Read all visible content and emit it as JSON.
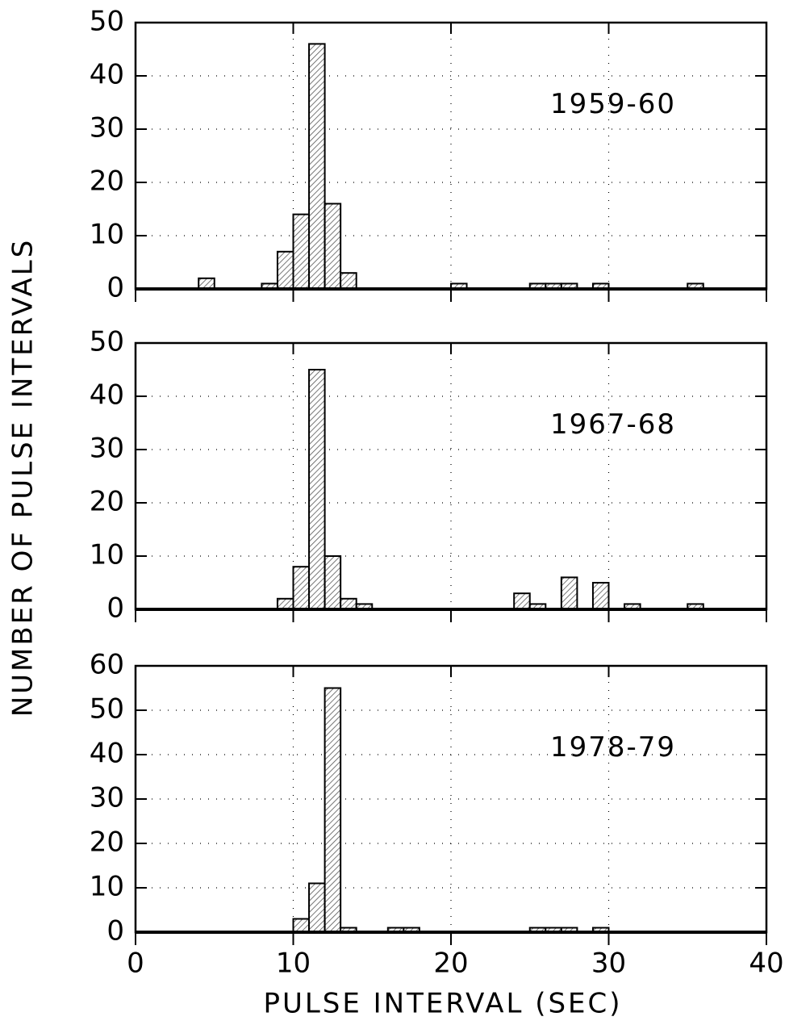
{
  "chart_data": [
    {
      "type": "histogram",
      "annotation": "1959-60",
      "bins": [
        0,
        1,
        2,
        3,
        4,
        5,
        6,
        7,
        8,
        9,
        10,
        11,
        12,
        13,
        14,
        15,
        16,
        17,
        18,
        19,
        20,
        21,
        22,
        23,
        24,
        25,
        26,
        27,
        28,
        29,
        30,
        31,
        32,
        33,
        34,
        35,
        36,
        37,
        38,
        39,
        40
      ],
      "counts": [
        0,
        0,
        0,
        0,
        2,
        0,
        0,
        0,
        1,
        7,
        14,
        46,
        16,
        3,
        0,
        0,
        0,
        0,
        0,
        0,
        1,
        0,
        0,
        0,
        0,
        1,
        1,
        1,
        0,
        1,
        0,
        0,
        0,
        0,
        0,
        1,
        0,
        0,
        0,
        0
      ],
      "color": "#000000",
      "xlim": [
        0,
        40
      ],
      "ylim": [
        0,
        50
      ],
      "yticks": [
        0,
        10,
        20,
        30,
        40,
        50
      ],
      "grid": true
    },
    {
      "type": "histogram",
      "annotation": "1967-68",
      "ylabel": "NUMBER OF PULSE INTERVALS",
      "bins": [
        0,
        1,
        2,
        3,
        4,
        5,
        6,
        7,
        8,
        9,
        10,
        11,
        12,
        13,
        14,
        15,
        16,
        17,
        18,
        19,
        20,
        21,
        22,
        23,
        24,
        25,
        26,
        27,
        28,
        29,
        30,
        31,
        32,
        33,
        34,
        35,
        36,
        37,
        38,
        39,
        40
      ],
      "counts": [
        0,
        0,
        0,
        0,
        0,
        0,
        0,
        0,
        0,
        2,
        8,
        45,
        10,
        2,
        1,
        0,
        0,
        0,
        0,
        0,
        0,
        0,
        0,
        0,
        3,
        1,
        0,
        6,
        0,
        5,
        0,
        1,
        0,
        0,
        0,
        1,
        0,
        0,
        0,
        0
      ],
      "color": "#000000",
      "xlim": [
        0,
        40
      ],
      "ylim": [
        0,
        50
      ],
      "yticks": [
        0,
        10,
        20,
        30,
        40,
        50
      ],
      "grid": true
    },
    {
      "type": "histogram",
      "annotation": "1978-79",
      "xlabel": "PULSE INTERVAL (SEC)",
      "bins": [
        0,
        1,
        2,
        3,
        4,
        5,
        6,
        7,
        8,
        9,
        10,
        11,
        12,
        13,
        14,
        15,
        16,
        17,
        18,
        19,
        20,
        21,
        22,
        23,
        24,
        25,
        26,
        27,
        28,
        29,
        30,
        31,
        32,
        33,
        34,
        35,
        36,
        37,
        38,
        39,
        40
      ],
      "counts": [
        0,
        0,
        0,
        0,
        0,
        0,
        0,
        0,
        0,
        0,
        3,
        11,
        55,
        1,
        0,
        0,
        1,
        1,
        0,
        0,
        0,
        0,
        0,
        0,
        0,
        1,
        1,
        1,
        0,
        1,
        0,
        0,
        0,
        0,
        0,
        0,
        0,
        0,
        0,
        0
      ],
      "color": "#000000",
      "xlim": [
        0,
        40
      ],
      "ylim": [
        0,
        60
      ],
      "yticks": [
        0,
        10,
        20,
        30,
        40,
        50,
        60
      ],
      "xticks": [
        0,
        10,
        20,
        30,
        40
      ],
      "grid": true
    }
  ]
}
